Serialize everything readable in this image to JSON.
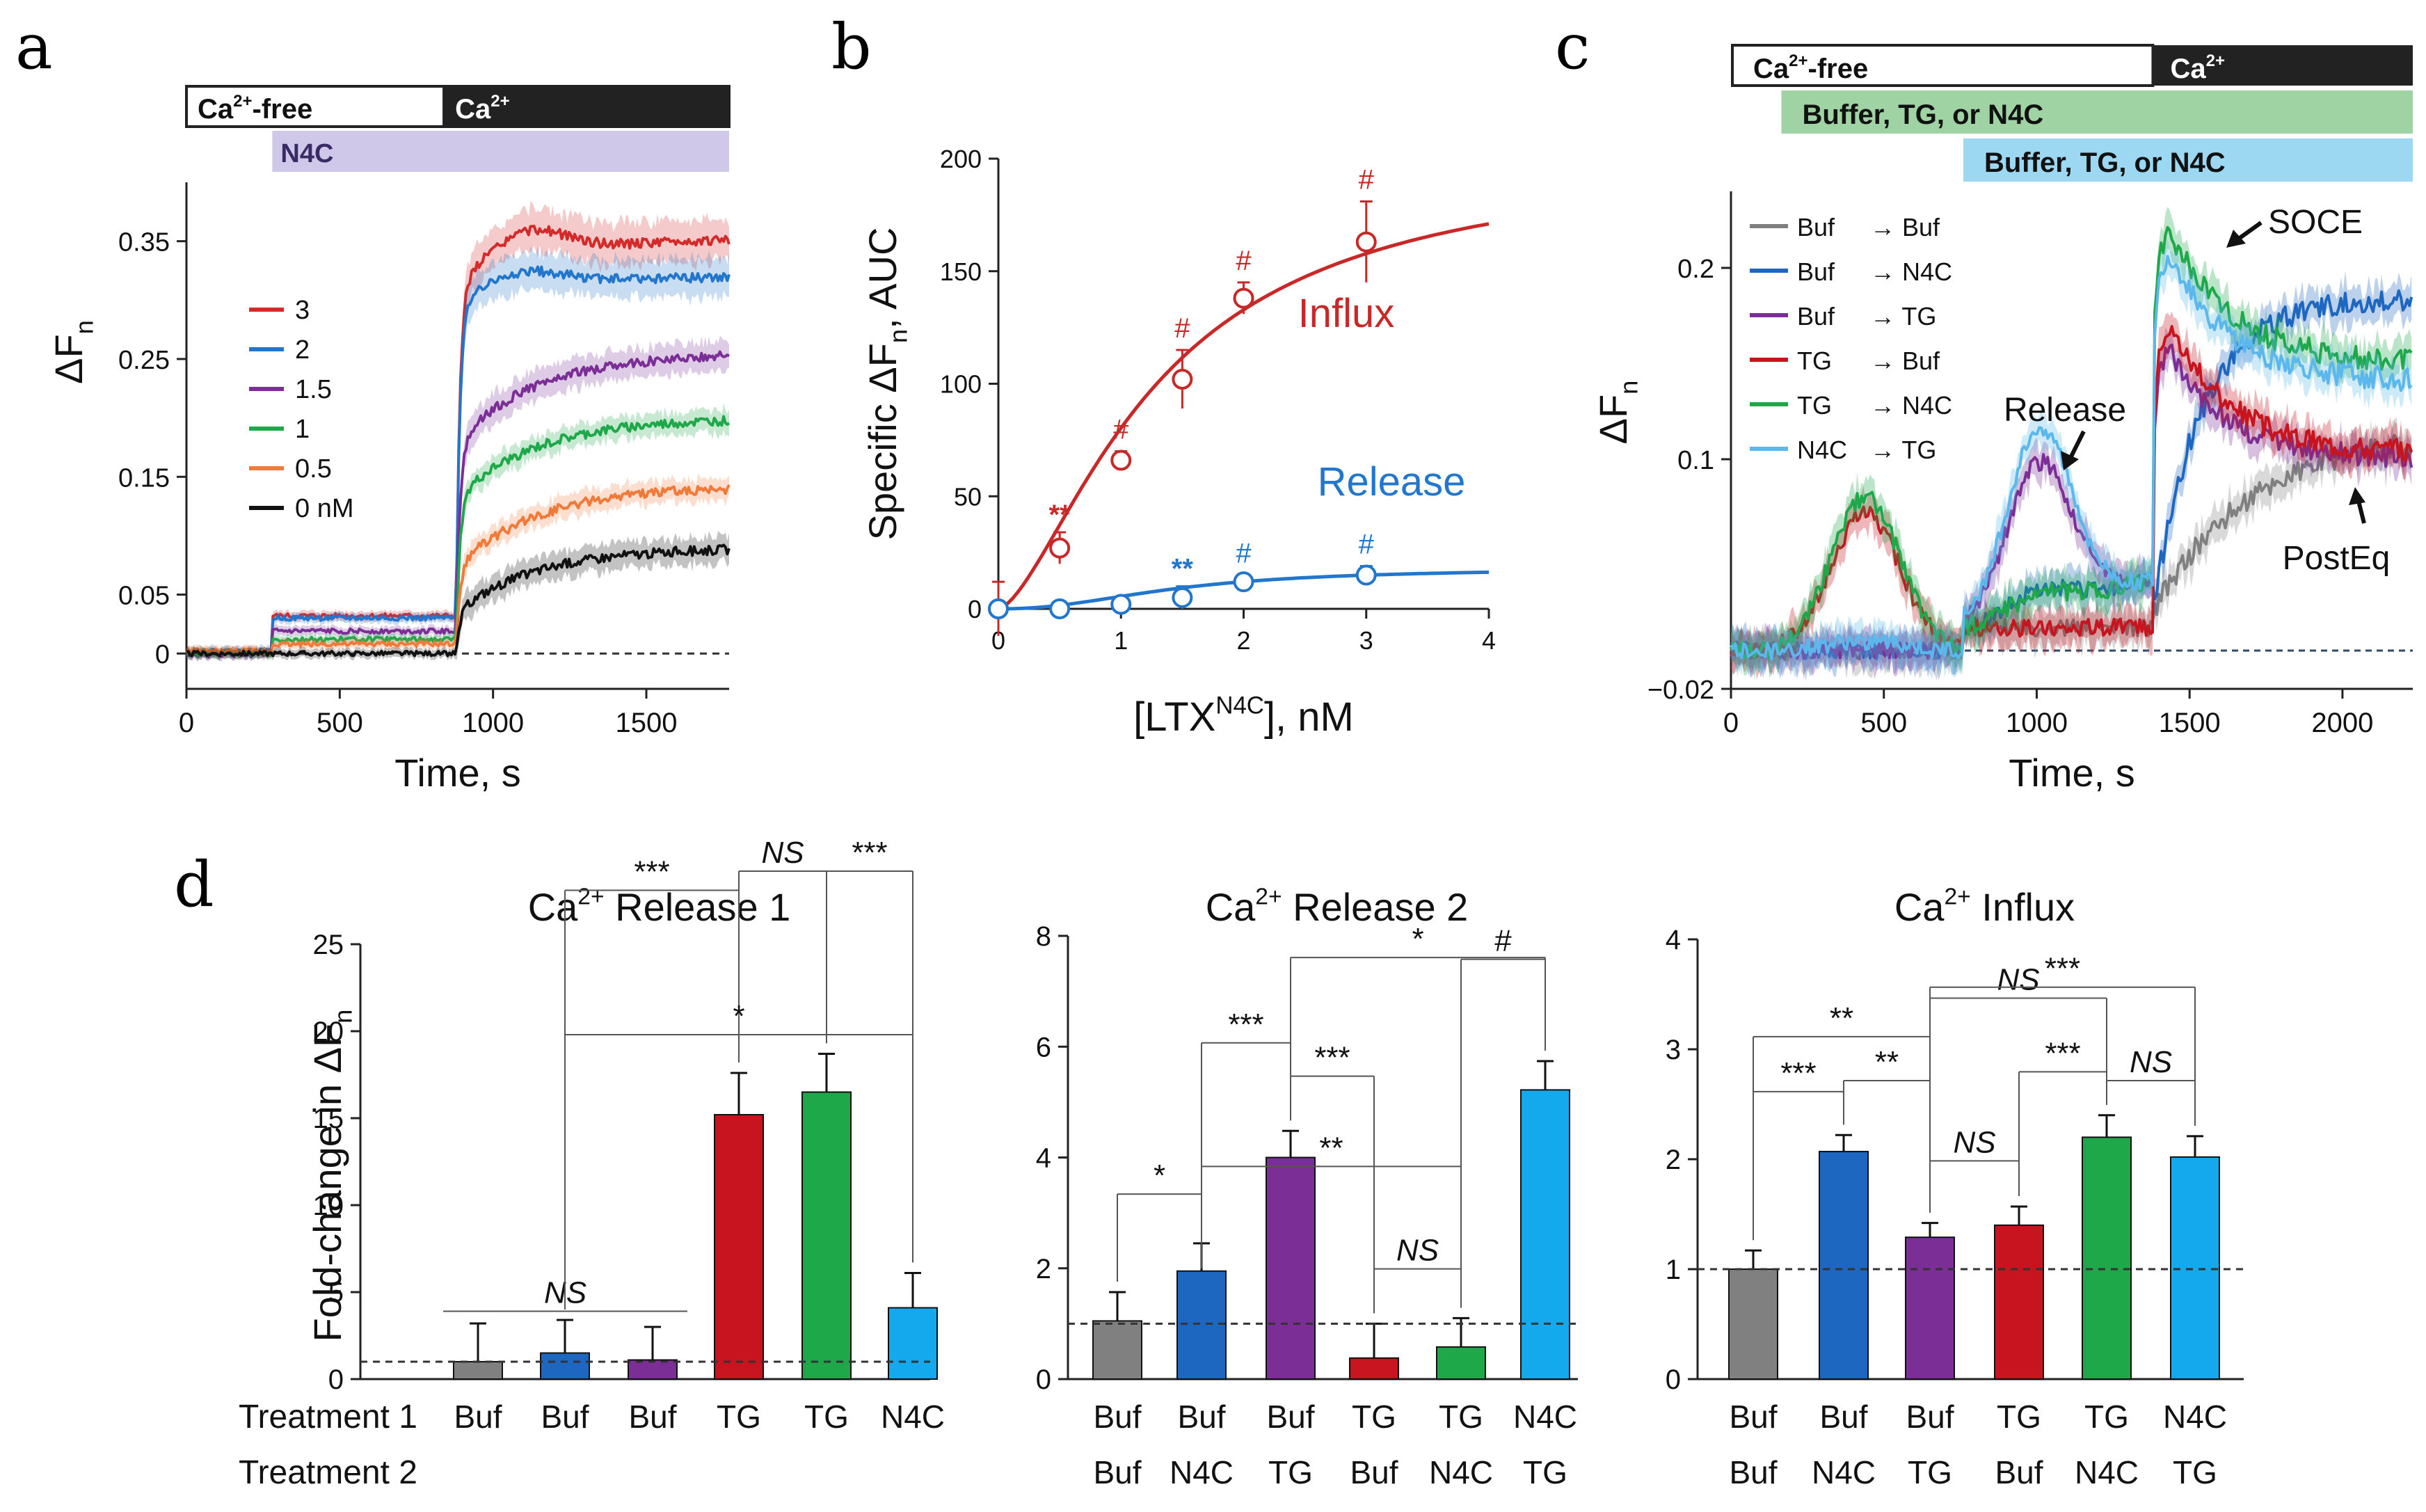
{
  "chart_data": [
    {
      "panel": "a",
      "type": "line",
      "xlabel": "Time, s",
      "ylabel": "ΔFn",
      "xlim": [
        0,
        1770
      ],
      "ylim": [
        -0.03,
        0.4
      ],
      "xticks": [
        0,
        500,
        1000,
        1500
      ],
      "yticks": [
        0,
        0.05,
        0.15,
        0.25,
        0.35
      ],
      "yticklabels": [
        "0",
        "0.05",
        "0.15",
        "0.25",
        "0.35"
      ],
      "bars": [
        {
          "label": "Ca²⁺-free",
          "start": 0,
          "end": 840,
          "fill": "#ffffff"
        },
        {
          "label": "Ca²⁺",
          "start": 840,
          "end": 1770,
          "fill": "#222222"
        },
        {
          "label": "N4C",
          "start": 280,
          "end": 1770,
          "fill": "#cfc8e8"
        }
      ],
      "legend": [
        "3",
        "2",
        "1.5",
        "1",
        "0.5",
        "0 nM"
      ],
      "series": [
        {
          "name": "3",
          "color": "#d42a2a",
          "base": 0.001,
          "step": 0.031,
          "jump": 0.28,
          "plateau": 0.352,
          "peak": 0.375,
          "err": 0.022
        },
        {
          "name": "2",
          "color": "#2277cc",
          "base": 0.002,
          "step": 0.028,
          "jump": 0.27,
          "plateau": 0.32,
          "peak": 0.332,
          "err": 0.02
        },
        {
          "name": "1.5",
          "color": "#7b2f96",
          "base": -0.001,
          "step": 0.02,
          "jump": 0.16,
          "plateau": 0.255,
          "peak": 0.255,
          "err": 0.016
        },
        {
          "name": "1",
          "color": "#1ea84a",
          "base": 0.0,
          "step": 0.012,
          "jump": 0.12,
          "plateau": 0.2,
          "peak": 0.2,
          "err": 0.012
        },
        {
          "name": "0.5",
          "color": "#f07a3a",
          "base": 0.002,
          "step": 0.006,
          "jump": 0.065,
          "plateau": 0.142,
          "peak": 0.142,
          "err": 0.012
        },
        {
          "name": "0 nM",
          "color": "#111111",
          "base": 0.0,
          "step": 0.0,
          "jump": 0.035,
          "plateau": 0.09,
          "peak": 0.09,
          "err": 0.014
        }
      ]
    },
    {
      "panel": "b",
      "type": "scatter",
      "xlabel": "[LTX",
      "xlabel_sup": "N4C",
      "xlabel_end": "], nM",
      "ylabel": "Specific ΔFn, AUC",
      "xlim": [
        0,
        4
      ],
      "ylim": [
        0,
        200
      ],
      "xticks": [
        0,
        1,
        2,
        3,
        4
      ],
      "yticks": [
        0,
        50,
        100,
        150,
        200
      ],
      "series": [
        {
          "name": "Influx",
          "color": "#c82828",
          "x": [
            0,
            0.5,
            1,
            1.5,
            2,
            3
          ],
          "y": [
            0,
            27,
            66,
            102,
            138,
            163
          ],
          "err": [
            12,
            7,
            4,
            13,
            7,
            18
          ],
          "sig": [
            "",
            "**",
            "#",
            "#",
            "#",
            "#"
          ],
          "curve": {
            "top": 201,
            "ec50": 1.3,
            "hill": 1.55
          }
        },
        {
          "name": "Release",
          "color": "#2277cc",
          "x": [
            0,
            0.5,
            1,
            1.5,
            2,
            3
          ],
          "y": [
            0,
            0,
            2,
            5,
            12,
            15
          ],
          "err": [
            0,
            0,
            1,
            5,
            3,
            4
          ],
          "sig": [
            "",
            "",
            "",
            "**",
            "#",
            "#"
          ],
          "curve": {
            "top": 18,
            "ec50": 1.45,
            "hill": 2.2
          }
        }
      ]
    },
    {
      "panel": "c",
      "type": "line",
      "xlabel": "Time, s",
      "ylabel": "ΔFn",
      "xlim": [
        0,
        2230
      ],
      "ylim": [
        -0.02,
        0.24
      ],
      "xticks": [
        0,
        500,
        1000,
        1500,
        2000
      ],
      "yticks": [
        -0.02,
        0.1,
        0.2
      ],
      "yticklabels": [
        "−0.02",
        "0.1",
        "0.2"
      ],
      "bars": [
        {
          "label": "Ca²⁺-free",
          "start": 0,
          "end": 1380,
          "fill": "#ffffff"
        },
        {
          "label": "Ca²⁺",
          "start": 1380,
          "end": 2230,
          "fill": "#222222"
        },
        {
          "label": "Buffer, TG, or N4C",
          "start": 165,
          "end": 2230,
          "fill": "#9fd3a3"
        },
        {
          "label": "Buffer, TG, or N4C",
          "start": 760,
          "end": 2230,
          "fill": "#9dd8f2"
        }
      ],
      "annotations": [
        "SOCE",
        "Release",
        "PostEq"
      ],
      "series": [
        {
          "name": "Buf",
          "name2": "Buf",
          "color": "#808080",
          "r1": 0,
          "r2": 0,
          "peak": 0,
          "end": 0.115,
          "rise": 0.25
        },
        {
          "name": "Buf",
          "name2": "N4C",
          "color": "#1e67c0",
          "r1": 0,
          "r2": 0.01,
          "peak": 0,
          "end": 0.184,
          "rise": 0.12
        },
        {
          "name": "Buf",
          "name2": "TG",
          "color": "#7b2f96",
          "r1": 0,
          "r2": 0.077,
          "peak": 0.16,
          "end": 0.1,
          "rise": 0
        },
        {
          "name": "TG",
          "name2": "Buf",
          "color": "#c8141e",
          "r1": 0.072,
          "r2": 0,
          "peak": 0.177,
          "end": 0.103,
          "rise": 0
        },
        {
          "name": "TG",
          "name2": "N4C",
          "color": "#1ea84a",
          "r1": 0.08,
          "r2": 0.008,
          "peak": 0.226,
          "end": 0.15,
          "rise": 0
        },
        {
          "name": "N4C",
          "name2": "TG",
          "color": "#5bb8ec",
          "r1": 0.005,
          "r2": 0.095,
          "peak": 0.214,
          "end": 0.14,
          "rise": 0
        }
      ]
    },
    {
      "panel": "d",
      "type": "bar",
      "ylabel": "Fold-change in ΔFn",
      "row_labels": [
        "Treatment 1",
        "Treatment 2"
      ],
      "charts": [
        {
          "title": "Ca",
          "title_sup": "2+",
          "title_end": " Release 1",
          "ylim": [
            0,
            25
          ],
          "yticks": [
            0,
            5,
            10,
            15,
            20,
            25
          ],
          "treat1": [
            "Buf",
            "Buf",
            "Buf",
            "TG",
            "TG",
            "N4C"
          ],
          "treat2": [
            "",
            "",
            "",
            "",
            "",
            ""
          ],
          "values": [
            1.0,
            1.5,
            1.1,
            15.2,
            16.5,
            4.1
          ],
          "errors": [
            2.2,
            1.9,
            1.9,
            2.4,
            2.2,
            2.0
          ]
        },
        {
          "title": "Ca",
          "title_sup": "2+",
          "title_end": " Release 2",
          "ylim": [
            0,
            8
          ],
          "yticks": [
            0,
            2,
            4,
            6,
            8
          ],
          "treat1": [
            "Buf",
            "Buf",
            "Buf",
            "TG",
            "TG",
            "N4C"
          ],
          "treat2": [
            "Buf",
            "N4C",
            "TG",
            "Buf",
            "N4C",
            "TG"
          ],
          "values": [
            1.05,
            1.95,
            4.0,
            0.38,
            0.58,
            5.22
          ],
          "errors": [
            0.52,
            0.5,
            0.48,
            0.62,
            0.52,
            0.52
          ]
        },
        {
          "title": "Ca",
          "title_sup": "2+",
          "title_end": " Influx",
          "ylim": [
            0,
            4
          ],
          "yticks": [
            0,
            1,
            2,
            3,
            4
          ],
          "treat1": [
            "Buf",
            "Buf",
            "Buf",
            "TG",
            "TG",
            "N4C"
          ],
          "treat2": [
            "Buf",
            "N4C",
            "TG",
            "Buf",
            "N4C",
            "TG"
          ],
          "values": [
            1.0,
            2.07,
            1.29,
            1.4,
            2.2,
            2.02
          ],
          "errors": [
            0.17,
            0.15,
            0.13,
            0.17,
            0.2,
            0.19
          ]
        }
      ],
      "bar_colors": [
        "#808080",
        "#1e67c0",
        "#7b2f96",
        "#c8141e",
        "#1ea84a",
        "#14a9ec"
      ],
      "significance": [
        [
          {
            "label": "NS",
            "italic": true
          },
          {
            "label": "***",
            "italic": false
          },
          {
            "label": "NS",
            "italic": true
          },
          {
            "label": "***",
            "italic": false
          },
          {
            "label": "*",
            "italic": false
          }
        ],
        [
          {
            "label": "*",
            "italic": false
          },
          {
            "label": "***",
            "italic": false
          },
          {
            "label": "***",
            "italic": false
          },
          {
            "label": "**",
            "italic": false
          },
          {
            "label": "NS",
            "italic": true
          },
          {
            "label": "#",
            "italic": false
          },
          {
            "label": "*",
            "italic": false
          }
        ],
        [
          {
            "label": "***",
            "italic": false
          },
          {
            "label": "**",
            "italic": false
          },
          {
            "label": "**",
            "italic": false
          },
          {
            "label": "NS",
            "italic": true
          },
          {
            "label": "NS",
            "italic": true
          },
          {
            "label": "***",
            "italic": false
          },
          {
            "label": "NS",
            "italic": true
          },
          {
            "label": "***",
            "italic": false
          }
        ]
      ]
    }
  ],
  "panel_letters": [
    "a",
    "b",
    "c",
    "d"
  ],
  "colors": {
    "axis": "#222222",
    "dashed": "#333333",
    "c_dashed": "#2f4a6e"
  }
}
